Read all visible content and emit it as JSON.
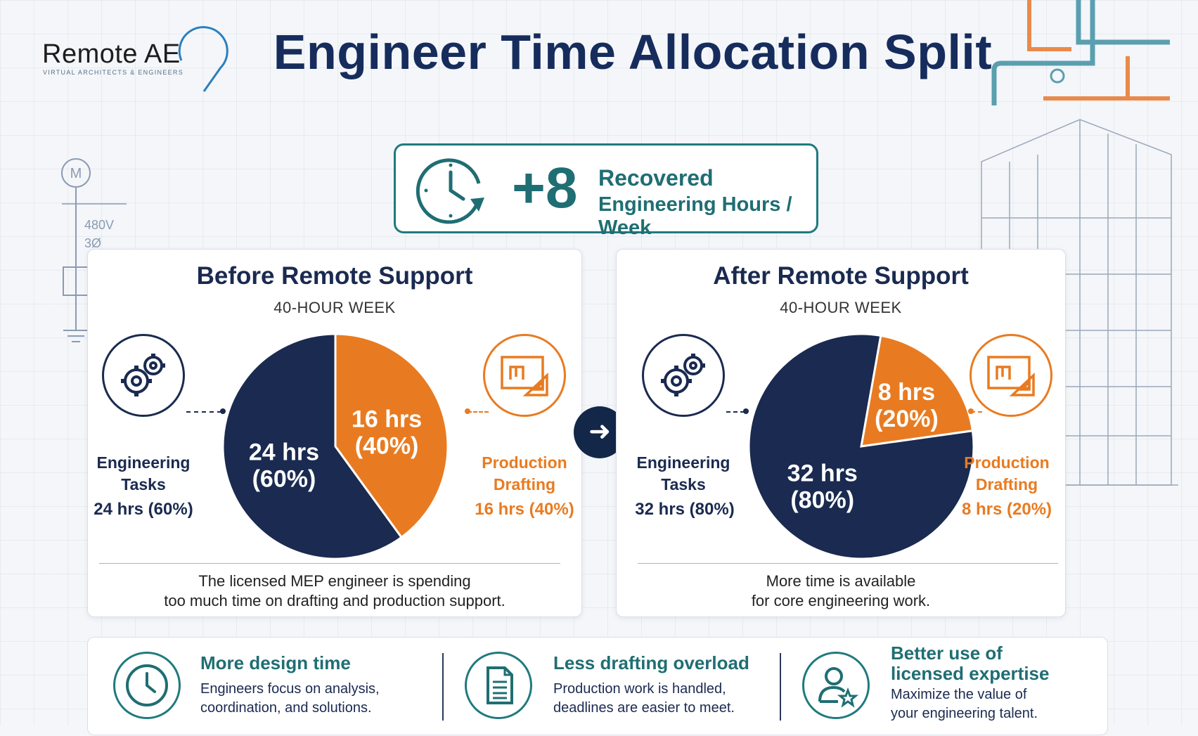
{
  "brand": {
    "name": "Remote AE",
    "tagline": "VIRTUAL ARCHITECTS & ENGINEERS"
  },
  "title": "Engineer Time Allocation Split",
  "background_annotations": {
    "voltage": "480V",
    "phase": "3Ø",
    "motor": "M"
  },
  "banner": {
    "value": "+8",
    "label_line1": "Recovered",
    "label_line2": "Engineering Hours / Week",
    "icon": "clock-refresh-icon"
  },
  "colors": {
    "navy": "#1a2a50",
    "orange": "#e87b21",
    "teal": "#1f6e73"
  },
  "chart_data": [
    {
      "type": "pie",
      "title": "Before Remote Support",
      "subtitle": "40-HOUR WEEK",
      "slices": [
        {
          "name": "Engineering Tasks",
          "value": 24,
          "unit": "hrs",
          "percent": 60,
          "label": "24 hrs",
          "pct_label": "(60%)",
          "color": "#1a2a50"
        },
        {
          "name": "Production Drafting",
          "value": 16,
          "unit": "hrs",
          "percent": 40,
          "label": "16 hrs",
          "pct_label": "(40%)",
          "color": "#e87b21"
        }
      ],
      "legend": {
        "eng_line1": "Engineering",
        "eng_line2": "Tasks",
        "eng_value": "24 hrs (60%)",
        "prod_line1": "Production",
        "prod_line2": "Drafting",
        "prod_value": "16 hrs (40%)"
      },
      "caption_line1": "The licensed MEP engineer is spending",
      "caption_line2": "too much time on drafting and production support."
    },
    {
      "type": "pie",
      "title": "After Remote Support",
      "subtitle": "40-HOUR WEEK",
      "slices": [
        {
          "name": "Engineering Tasks",
          "value": 32,
          "unit": "hrs",
          "percent": 80,
          "label": "32 hrs",
          "pct_label": "(80%)",
          "color": "#1a2a50"
        },
        {
          "name": "Production Drafting",
          "value": 8,
          "unit": "hrs",
          "percent": 20,
          "label": "8 hrs",
          "pct_label": "(20%)",
          "color": "#e87b21"
        }
      ],
      "legend": {
        "eng_line1": "Engineering",
        "eng_line2": "Tasks",
        "eng_value": "32 hrs (80%)",
        "prod_line1": "Production",
        "prod_line2": "Drafting",
        "prod_value": "8 hrs  (20%)"
      },
      "caption_line1": "More time is available",
      "caption_line2": "for core engineering work."
    }
  ],
  "benefits": [
    {
      "icon": "clock-icon",
      "heading": "More design time",
      "heading2": "",
      "text1": "Engineers focus on analysis,",
      "text2": "coordination, and solutions."
    },
    {
      "icon": "document-icon",
      "heading": "Less  drafting overload",
      "heading2": "",
      "text1": "Production work is handled,",
      "text2": "deadlines are easier to meet."
    },
    {
      "icon": "user-star-icon",
      "heading": "Better use of",
      "heading2": "licensed expertise",
      "text1": "Maximize the value of",
      "text2": "your engineering talent."
    }
  ]
}
